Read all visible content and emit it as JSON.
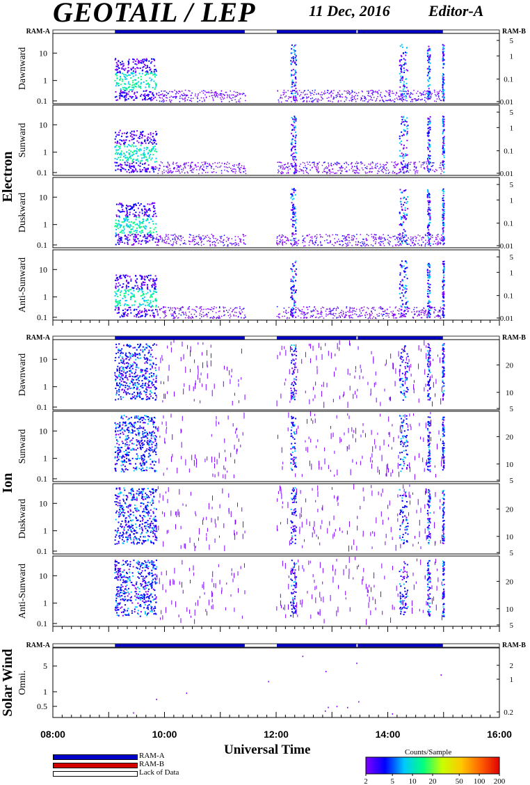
{
  "header": {
    "title": "GEOTAIL / LEP",
    "date": "11 Dec, 2016",
    "editor": "Editor-A"
  },
  "chart_data": {
    "type": "heatmap",
    "xlabel": "Universal Time",
    "x_ticks": [
      "08:00",
      "10:00",
      "12:00",
      "14:00",
      "16:00"
    ],
    "x_range_hours": [
      8,
      16
    ],
    "mode_bar": {
      "left_label": "RAM-A",
      "right_label": "RAM-B",
      "ram_a_intervals": [
        [
          9.1,
          11.45
        ],
        [
          12.0,
          13.45
        ],
        [
          13.45,
          15.0
        ]
      ],
      "lack_of_data_intervals": [
        [
          8.0,
          9.1
        ],
        [
          11.45,
          12.0
        ],
        [
          15.0,
          16.0
        ]
      ]
    },
    "groups": [
      {
        "name": "Electron",
        "panels": [
          {
            "label": "Dawnward",
            "left_ticks": [
              "10",
              "1",
              "0.1"
            ],
            "right_ticks": [
              "5",
              "1",
              "0.1",
              "0.01"
            ]
          },
          {
            "label": "Sunward",
            "left_ticks": [
              "10",
              "1",
              "0.1"
            ],
            "right_ticks": [
              "5",
              "1",
              "0.1",
              "0.01"
            ]
          },
          {
            "label": "Duskward",
            "left_ticks": [
              "10",
              "1",
              "0.1"
            ],
            "right_ticks": [
              "5",
              "1",
              "0.1",
              "0.01"
            ]
          },
          {
            "label": "Anti-Sunward",
            "left_ticks": [
              "10",
              "1",
              "0.1"
            ],
            "right_ticks": [
              "5",
              "1",
              "0.1",
              "0.01"
            ]
          }
        ],
        "activity_hours": [
          [
            9.1,
            9.85
          ],
          [
            12.25,
            12.35
          ],
          [
            14.2,
            14.35
          ],
          [
            14.7,
            14.75
          ],
          [
            14.97,
            15.0
          ]
        ],
        "background_hours": [
          [
            9.85,
            11.45
          ],
          [
            12.0,
            14.97
          ]
        ]
      },
      {
        "name": "Ion",
        "panels": [
          {
            "label": "Dawnward",
            "left_ticks": [
              "10",
              "1",
              "0.1"
            ],
            "right_ticks": [
              "20",
              "10",
              "5"
            ]
          },
          {
            "label": "Sunward",
            "left_ticks": [
              "10",
              "1",
              "0.1"
            ],
            "right_ticks": [
              "20",
              "10",
              "5"
            ]
          },
          {
            "label": "Duskward",
            "left_ticks": [
              "10",
              "1",
              "0.1"
            ],
            "right_ticks": [
              "20",
              "10",
              "5"
            ]
          },
          {
            "label": "Anti-Sunward",
            "left_ticks": [
              "10",
              "1",
              "0.1"
            ],
            "right_ticks": [
              "20",
              "10",
              "5"
            ]
          }
        ],
        "activity_hours": [
          [
            9.1,
            9.85
          ],
          [
            12.25,
            12.35
          ],
          [
            14.2,
            14.35
          ],
          [
            14.7,
            14.75
          ],
          [
            14.97,
            15.0
          ]
        ],
        "background_hours": [
          [
            9.85,
            11.45
          ],
          [
            12.0,
            14.97
          ]
        ]
      },
      {
        "name": "Solar Wind",
        "panels": [
          {
            "label": "Omni.",
            "left_ticks": [
              "5",
              "1",
              "0.5"
            ],
            "right_ticks": [
              "2",
              "1",
              "0.2"
            ]
          }
        ]
      }
    ],
    "legend": [
      "RAM-A",
      "RAM-B",
      "Lack of Data"
    ],
    "legend_colors": {
      "RAM-A": "#0000c8",
      "RAM-B": "#d40000",
      "Lack of Data": "#ffffff"
    },
    "colorbar": {
      "title": "Counts/Sample",
      "ticks": [
        "2",
        "5",
        "10",
        "20",
        "50",
        "100",
        "200"
      ],
      "colors": [
        "#8000ff",
        "#0000ff",
        "#00c8ff",
        "#00ff80",
        "#c8ff00",
        "#ffc800",
        "#ff6400",
        "#e00000"
      ]
    }
  }
}
